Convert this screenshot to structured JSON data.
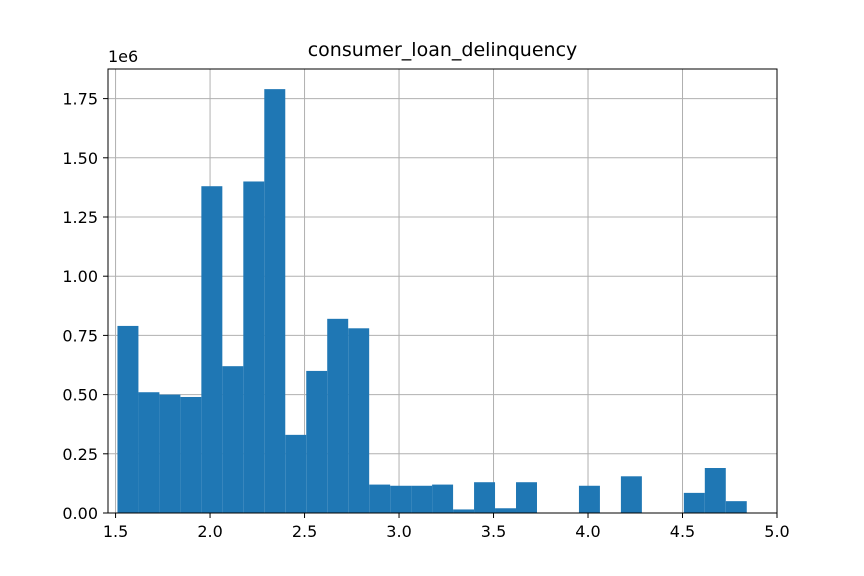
{
  "chart_data": {
    "type": "bar",
    "title": "consumer_loan_delinquency",
    "xlabel": "",
    "ylabel": "",
    "y_offset_label": "1e6",
    "grid": true,
    "xlim": [
      1.46,
      5.0
    ],
    "ylim": [
      0,
      1.875
    ],
    "x_ticks": [
      1.5,
      2.0,
      2.5,
      3.0,
      3.5,
      4.0,
      4.5,
      5.0
    ],
    "x_tick_labels": [
      "1.5",
      "2.0",
      "2.5",
      "3.0",
      "3.5",
      "4.0",
      "4.5",
      "5.0"
    ],
    "y_ticks": [
      0,
      0.25,
      0.5,
      0.75,
      1.0,
      1.25,
      1.5,
      1.75
    ],
    "y_tick_labels": [
      "0.00",
      "0.25",
      "0.50",
      "0.75",
      "1.00",
      "1.25",
      "1.50",
      "1.75"
    ],
    "bar_color": "#1f77b4",
    "bins_start": 1.51,
    "bin_width": 0.111,
    "values": [
      0.79,
      0.51,
      0.5,
      0.49,
      1.38,
      0.62,
      1.4,
      1.79,
      0.33,
      0.6,
      0.82,
      0.78,
      0.12,
      0.115,
      0.115,
      0.12,
      0.015,
      0.13,
      0.02,
      0.13,
      0.0,
      0.0,
      0.115,
      0.0,
      0.155,
      0.0,
      0.0,
      0.085,
      0.19,
      0.05
    ]
  }
}
